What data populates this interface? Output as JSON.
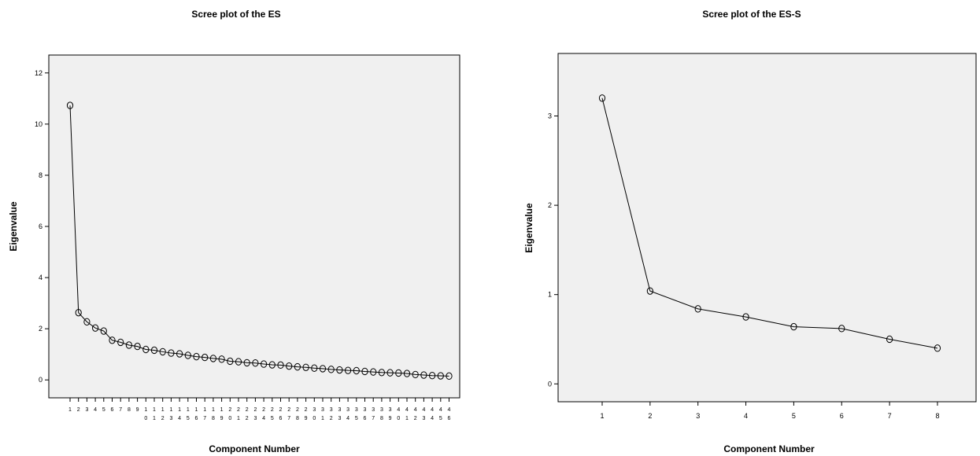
{
  "chart_data": [
    {
      "type": "line",
      "title": "Scree plot of the ES",
      "xlabel": "Component Number",
      "ylabel": "Eigenvalue",
      "ylim": [
        -0.7,
        12.7
      ],
      "yticks": [
        0,
        2,
        4,
        6,
        8,
        10,
        12
      ],
      "x": [
        1,
        2,
        3,
        4,
        5,
        6,
        7,
        8,
        9,
        10,
        11,
        12,
        13,
        14,
        15,
        16,
        17,
        18,
        19,
        20,
        21,
        22,
        23,
        24,
        25,
        26,
        27,
        28,
        29,
        30,
        31,
        32,
        33,
        34,
        35,
        36,
        37,
        38,
        39,
        40,
        41,
        42,
        43,
        44,
        45,
        46
      ],
      "x_tick_labels": [
        [
          "1"
        ],
        [
          "2"
        ],
        [
          "3"
        ],
        [
          "4"
        ],
        [
          "5"
        ],
        [
          "6"
        ],
        [
          "7"
        ],
        [
          "8"
        ],
        [
          "9"
        ],
        [
          "1",
          "0"
        ],
        [
          "1",
          "1"
        ],
        [
          "1",
          "2"
        ],
        [
          "1",
          "3"
        ],
        [
          "1",
          "4"
        ],
        [
          "1",
          "5"
        ],
        [
          "1",
          "6"
        ],
        [
          "1",
          "7"
        ],
        [
          "1",
          "8"
        ],
        [
          "1",
          "9"
        ],
        [
          "2",
          "0"
        ],
        [
          "2",
          "1"
        ],
        [
          "2",
          "2"
        ],
        [
          "2",
          "3"
        ],
        [
          "2",
          "4"
        ],
        [
          "2",
          "5"
        ],
        [
          "2",
          "6"
        ],
        [
          "2",
          "7"
        ],
        [
          "2",
          "8"
        ],
        [
          "2",
          "9"
        ],
        [
          "3",
          "0"
        ],
        [
          "3",
          "1"
        ],
        [
          "3",
          "2"
        ],
        [
          "3",
          "3"
        ],
        [
          "3",
          "4"
        ],
        [
          "3",
          "5"
        ],
        [
          "3",
          "6"
        ],
        [
          "3",
          "7"
        ],
        [
          "3",
          "8"
        ],
        [
          "3",
          "9"
        ],
        [
          "4",
          "0"
        ],
        [
          "4",
          "1"
        ],
        [
          "4",
          "2"
        ],
        [
          "4",
          "3"
        ],
        [
          "4",
          "4"
        ],
        [
          "4",
          "5"
        ],
        [
          "4",
          "6"
        ]
      ],
      "values": [
        10.73,
        2.63,
        2.27,
        2.03,
        1.91,
        1.55,
        1.47,
        1.36,
        1.31,
        1.19,
        1.16,
        1.1,
        1.05,
        1.02,
        0.96,
        0.91,
        0.88,
        0.84,
        0.81,
        0.73,
        0.71,
        0.67,
        0.66,
        0.62,
        0.59,
        0.58,
        0.54,
        0.51,
        0.49,
        0.46,
        0.44,
        0.41,
        0.39,
        0.37,
        0.36,
        0.33,
        0.31,
        0.29,
        0.28,
        0.27,
        0.25,
        0.21,
        0.19,
        0.17,
        0.16,
        0.15
      ]
    },
    {
      "type": "line",
      "title": "Scree plot of the ES-S",
      "xlabel": "Component Number",
      "ylabel": "Eigenvalue",
      "ylim": [
        -0.2,
        3.7
      ],
      "yticks": [
        0,
        1,
        2,
        3
      ],
      "x": [
        1,
        2,
        3,
        4,
        5,
        6,
        7,
        8
      ],
      "x_tick_labels": [
        [
          "1"
        ],
        [
          "2"
        ],
        [
          "3"
        ],
        [
          "4"
        ],
        [
          "5"
        ],
        [
          "6"
        ],
        [
          "7"
        ],
        [
          "8"
        ]
      ],
      "values": [
        3.2,
        1.04,
        0.84,
        0.75,
        0.64,
        0.62,
        0.5,
        0.4
      ]
    }
  ]
}
